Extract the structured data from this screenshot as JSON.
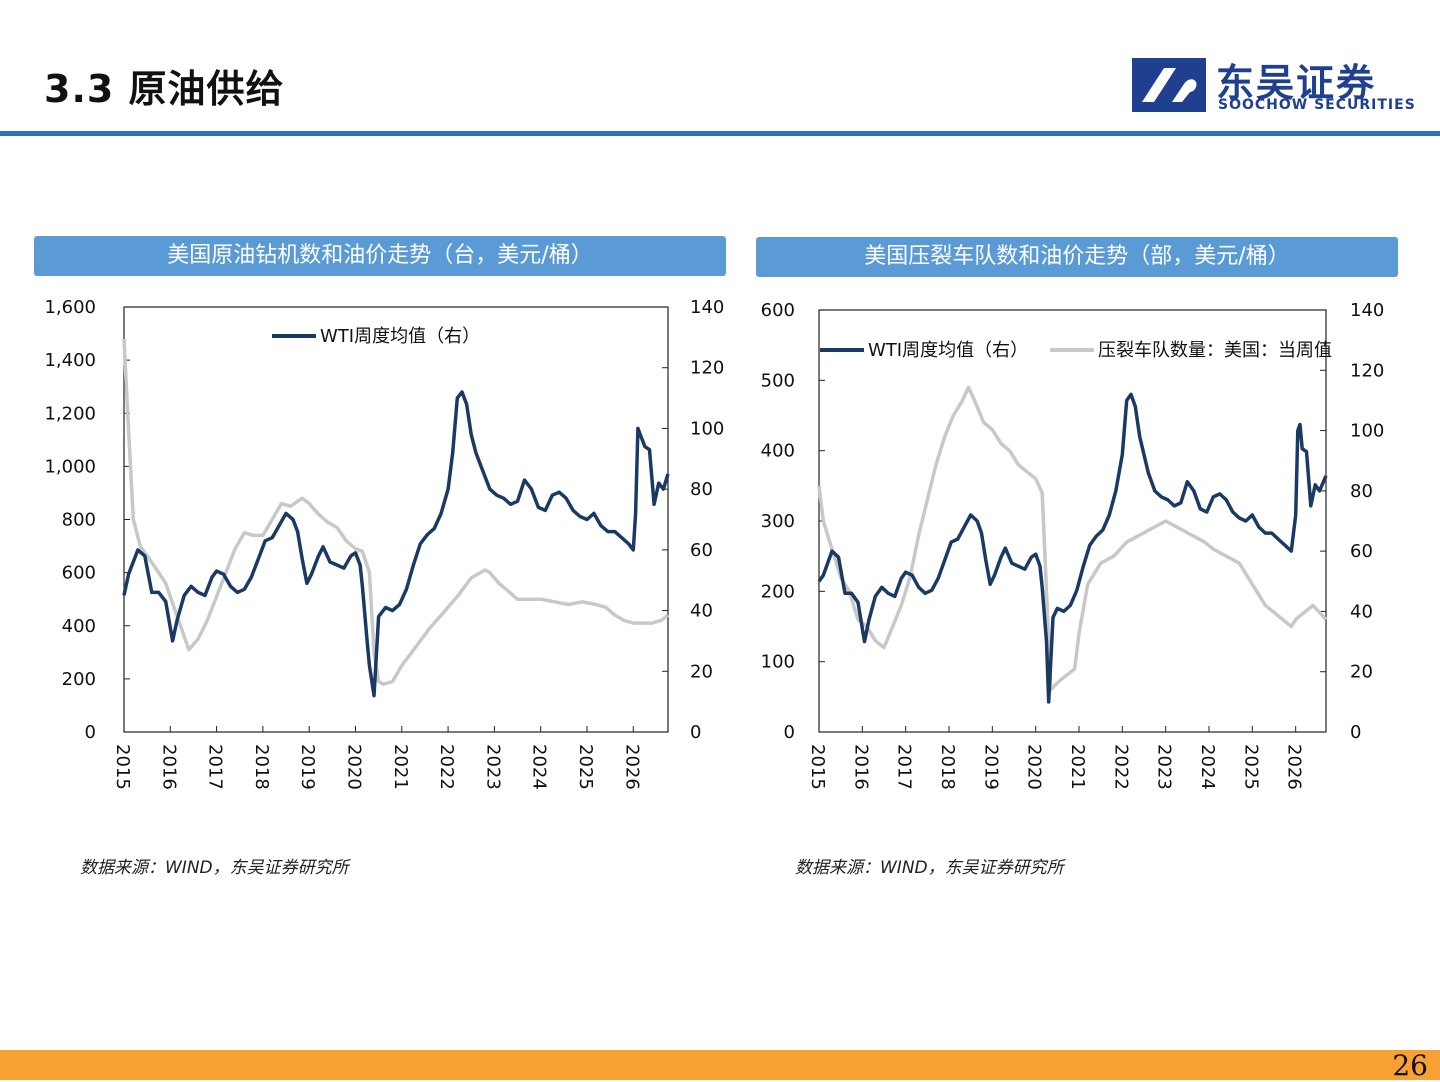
{
  "slide": {
    "title": "3.3 原油供给",
    "logo_cn": "东吴证券",
    "logo_en": "SOOCHOW SECURITIES",
    "page_number": "26",
    "colors": {
      "header_rule": "#2e74b5",
      "panel_header": "#5b9bd5",
      "footer": "#f7a134",
      "wti": "#1b3a63",
      "gray_series": "#c8c8c8"
    }
  },
  "charts": {
    "left": {
      "header": "美国原油钻机数和油价走势（台，美元/桶）",
      "source": "数据来源：WIND，东吴证券研究所"
    },
    "right": {
      "header": "美国压裂车队数和油价走势（部，美元/桶）",
      "source": "数据来源：WIND，东吴证券研究所"
    }
  },
  "chart_data": [
    {
      "type": "line",
      "title": "美国原油钻机数和油价走势（台，美元/桶）",
      "x_ticks": [
        "2015",
        "2016",
        "2017",
        "2018",
        "2019",
        "2020",
        "2021",
        "2022",
        "2023",
        "2024",
        "2025",
        "2026"
      ],
      "xlim": [
        2015,
        2026.75
      ],
      "y_left": {
        "lim": [
          0,
          1600
        ],
        "ticks": [
          "0",
          "200",
          "400",
          "600",
          "800",
          "1,000",
          "1,200",
          "1,400",
          "1,600"
        ]
      },
      "y_right": {
        "lim": [
          0,
          140
        ],
        "ticks": [
          "0",
          "20",
          "40",
          "60",
          "80",
          "100",
          "120",
          "140"
        ]
      },
      "legend": [
        "WTI周度均值（右）"
      ],
      "legend_position": "top",
      "series": [
        {
          "axis": "left",
          "color": "#c8c8c8",
          "x": [
            2015.0,
            2015.08,
            2015.2,
            2015.35,
            2015.55,
            2015.75,
            2015.9,
            2016.1,
            2016.3,
            2016.4,
            2016.6,
            2016.8,
            2017.0,
            2017.2,
            2017.4,
            2017.6,
            2017.8,
            2018.0,
            2018.2,
            2018.4,
            2018.6,
            2018.85,
            2019.0,
            2019.2,
            2019.4,
            2019.6,
            2019.8,
            2020.0,
            2020.15,
            2020.3,
            2020.4,
            2020.5,
            2020.6,
            2020.8,
            2021.0,
            2021.3,
            2021.6,
            2021.9,
            2022.2,
            2022.5,
            2022.8,
            2022.9,
            2023.1,
            2023.3,
            2023.5,
            2023.8,
            2024.0,
            2024.3,
            2024.6,
            2024.9,
            2025.2,
            2025.4,
            2025.6,
            2025.8,
            2026.0,
            2026.2,
            2026.4,
            2026.6,
            2026.75
          ],
          "y": [
            1480,
            1200,
            800,
            700,
            650,
            600,
            560,
            460,
            360,
            310,
            350,
            420,
            510,
            600,
            690,
            750,
            740,
            740,
            800,
            860,
            850,
            880,
            860,
            820,
            790,
            770,
            720,
            690,
            680,
            600,
            300,
            190,
            180,
            190,
            250,
            320,
            390,
            450,
            510,
            580,
            610,
            600,
            560,
            530,
            500,
            500,
            500,
            490,
            480,
            490,
            480,
            470,
            440,
            420,
            410,
            410,
            410,
            420,
            440
          ]
        },
        {
          "axis": "right",
          "color": "#1b3a63",
          "x": [
            2015.0,
            2015.1,
            2015.3,
            2015.45,
            2015.6,
            2015.75,
            2015.9,
            2016.05,
            2016.15,
            2016.3,
            2016.45,
            2016.6,
            2016.75,
            2016.9,
            2017.0,
            2017.15,
            2017.3,
            2017.45,
            2017.6,
            2017.75,
            2017.9,
            2018.05,
            2018.2,
            2018.35,
            2018.5,
            2018.65,
            2018.75,
            2018.85,
            2018.95,
            2019.05,
            2019.2,
            2019.3,
            2019.45,
            2019.6,
            2019.75,
            2019.9,
            2020.0,
            2020.1,
            2020.15,
            2020.25,
            2020.3,
            2020.4,
            2020.5,
            2020.65,
            2020.8,
            2020.95,
            2021.1,
            2021.25,
            2021.4,
            2021.55,
            2021.7,
            2021.85,
            2022.0,
            2022.1,
            2022.2,
            2022.3,
            2022.4,
            2022.5,
            2022.6,
            2022.75,
            2022.9,
            2023.05,
            2023.2,
            2023.35,
            2023.5,
            2023.65,
            2023.8,
            2023.95,
            2024.1,
            2024.25,
            2024.4,
            2024.55,
            2024.7,
            2024.85,
            2025.0,
            2025.15,
            2025.3,
            2025.45,
            2025.6,
            2025.75,
            2025.9,
            2026.0,
            2026.05,
            2026.1,
            2026.15,
            2026.25,
            2026.35,
            2026.45,
            2026.55,
            2026.65,
            2026.75
          ],
          "y": [
            45,
            52,
            60,
            58,
            46,
            46,
            43,
            30,
            37,
            45,
            48,
            46,
            45,
            51,
            53,
            52,
            48,
            46,
            47,
            51,
            57,
            63,
            64,
            68,
            72,
            70,
            66,
            57,
            49,
            52,
            58,
            61,
            56,
            55,
            54,
            58,
            59,
            55,
            48,
            30,
            22,
            12,
            38,
            41,
            40,
            42,
            47,
            55,
            62,
            65,
            67,
            72,
            80,
            92,
            110,
            112,
            108,
            98,
            92,
            86,
            80,
            78,
            77,
            75,
            76,
            83,
            80,
            74,
            73,
            78,
            79,
            77,
            73,
            71,
            70,
            72,
            68,
            66,
            66,
            64,
            62,
            60,
            72,
            100,
            98,
            94,
            93,
            75,
            82,
            80,
            85
          ]
        }
      ]
    },
    {
      "type": "line",
      "title": "美国压裂车队数和油价走势（部，美元/桶）",
      "x_ticks": [
        "2015",
        "2016",
        "2017",
        "2018",
        "2019",
        "2020",
        "2021",
        "2022",
        "2023",
        "2024",
        "2025",
        "2026"
      ],
      "xlim": [
        2015,
        2026.7
      ],
      "y_left": {
        "lim": [
          0,
          600
        ],
        "ticks": [
          "0",
          "100",
          "200",
          "300",
          "400",
          "500",
          "600"
        ]
      },
      "y_right": {
        "lim": [
          0,
          140
        ],
        "ticks": [
          "0",
          "20",
          "40",
          "60",
          "80",
          "100",
          "120",
          "140"
        ]
      },
      "legend": [
        "WTI周度均值（右）",
        "压裂车队数量：美国：当周值"
      ],
      "legend_position": "top",
      "series": [
        {
          "name": "压裂车队数量：美国：当周值",
          "axis": "left",
          "color": "#c8c8c8",
          "x": [
            2015.0,
            2015.1,
            2015.3,
            2015.5,
            2015.7,
            2015.9,
            2016.1,
            2016.3,
            2016.5,
            2016.7,
            2016.9,
            2017.0,
            2017.1,
            2017.3,
            2017.5,
            2017.7,
            2017.9,
            2018.1,
            2018.3,
            2018.45,
            2018.6,
            2018.8,
            2019.0,
            2019.2,
            2019.4,
            2019.6,
            2019.8,
            2020.0,
            2020.15,
            2020.25,
            2020.35,
            2020.5,
            2020.7,
            2020.9,
            2021.0,
            2021.2,
            2021.5,
            2021.8,
            2022.1,
            2022.4,
            2022.7,
            2023.0,
            2023.3,
            2023.6,
            2023.9,
            2024.1,
            2024.4,
            2024.7,
            2024.9,
            2025.1,
            2025.3,
            2025.5,
            2025.7,
            2025.9,
            2026.0,
            2026.2,
            2026.4,
            2026.55,
            2026.7
          ],
          "y": [
            350,
            300,
            260,
            220,
            200,
            160,
            150,
            130,
            120,
            150,
            180,
            200,
            220,
            280,
            330,
            380,
            420,
            450,
            470,
            490,
            470,
            440,
            430,
            410,
            400,
            380,
            370,
            360,
            340,
            200,
            60,
            70,
            80,
            90,
            140,
            210,
            240,
            250,
            270,
            280,
            290,
            300,
            290,
            280,
            270,
            260,
            250,
            240,
            220,
            200,
            180,
            170,
            160,
            150,
            160,
            170,
            180,
            170,
            160
          ]
        },
        {
          "name": "WTI周度均值（右）",
          "axis": "right",
          "color": "#1b3a63",
          "x": [
            2015.0,
            2015.1,
            2015.3,
            2015.45,
            2015.6,
            2015.75,
            2015.9,
            2016.05,
            2016.15,
            2016.3,
            2016.45,
            2016.6,
            2016.75,
            2016.9,
            2017.0,
            2017.15,
            2017.3,
            2017.45,
            2017.6,
            2017.75,
            2017.9,
            2018.05,
            2018.2,
            2018.35,
            2018.5,
            2018.65,
            2018.75,
            2018.85,
            2018.95,
            2019.05,
            2019.2,
            2019.3,
            2019.45,
            2019.6,
            2019.75,
            2019.9,
            2020.0,
            2020.1,
            2020.15,
            2020.25,
            2020.3,
            2020.4,
            2020.5,
            2020.65,
            2020.8,
            2020.95,
            2021.1,
            2021.25,
            2021.4,
            2021.55,
            2021.7,
            2021.85,
            2022.0,
            2022.1,
            2022.2,
            2022.3,
            2022.4,
            2022.5,
            2022.6,
            2022.75,
            2022.9,
            2023.05,
            2023.2,
            2023.35,
            2023.5,
            2023.65,
            2023.8,
            2023.95,
            2024.1,
            2024.25,
            2024.4,
            2024.55,
            2024.7,
            2024.85,
            2025.0,
            2025.15,
            2025.3,
            2025.45,
            2025.6,
            2025.75,
            2025.9,
            2026.0,
            2026.05,
            2026.1,
            2026.15,
            2026.25,
            2026.35,
            2026.45,
            2026.55,
            2026.7
          ],
          "y": [
            50,
            52,
            60,
            58,
            46,
            46,
            43,
            30,
            37,
            45,
            48,
            46,
            45,
            51,
            53,
            52,
            48,
            46,
            47,
            51,
            57,
            63,
            64,
            68,
            72,
            70,
            66,
            57,
            49,
            52,
            58,
            61,
            56,
            55,
            54,
            58,
            59,
            55,
            48,
            30,
            10,
            38,
            41,
            40,
            42,
            47,
            55,
            62,
            65,
            67,
            72,
            80,
            92,
            110,
            112,
            108,
            98,
            92,
            86,
            80,
            78,
            77,
            75,
            76,
            83,
            80,
            74,
            73,
            78,
            79,
            77,
            73,
            71,
            70,
            72,
            68,
            66,
            66,
            64,
            62,
            60,
            72,
            100,
            102,
            94,
            93,
            75,
            82,
            80,
            85
          ]
        }
      ]
    }
  ]
}
